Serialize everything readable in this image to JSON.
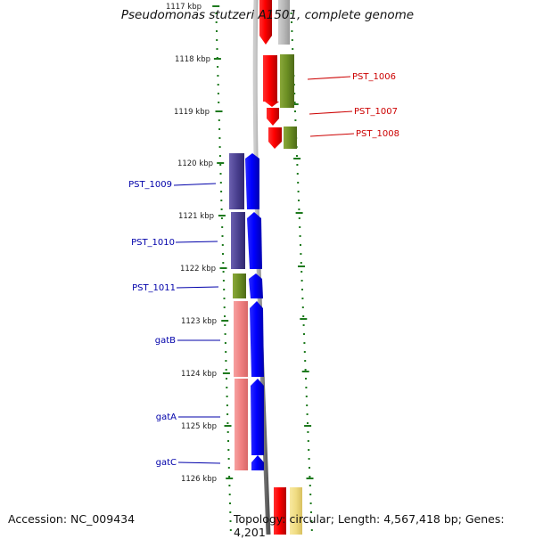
{
  "title": "Pseudomonas stutzeri A1501, complete genome",
  "accession": "Accession: NC_009434",
  "topology": "Topology: circular; Length: 4,567,418 bp; Genes: 4,201",
  "ruler": {
    "labels": [
      "1117 kbp",
      "1118 kbp",
      "1119 kbp",
      "1120 kbp",
      "1121 kbp",
      "1122 kbp",
      "1123 kbp",
      "1124 kbp",
      "1125 kbp",
      "1126 kbp"
    ]
  },
  "gene_labels_right": [
    "PST_1006",
    "PST_1007",
    "PST_1008"
  ],
  "gene_labels_left": [
    "PST_1009",
    "PST_1010",
    "PST_1011",
    "gatB",
    "gatA",
    "gatC"
  ],
  "colors": {
    "forward_gene": "#ff0000",
    "reverse_gene": "#0000ff",
    "cog_olive": "#6b8e23",
    "cog_purple": "#4b4190",
    "cog_pink": "#f08080",
    "cog_gray": "#b8b8b8",
    "cog_yellow": "#f0dc82",
    "ruler_tick": "#1e7a1e",
    "backbone": "#888888",
    "label_right": "#cc0000",
    "label_left": "#0000aa"
  }
}
